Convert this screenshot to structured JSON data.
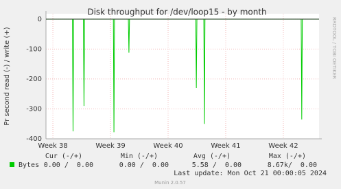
{
  "chart_data": {
    "type": "line",
    "title": "Disk throughput for /dev/loop15 - by month",
    "y_label": "Pr second read (-) / write (+)",
    "side_text": "RRDTOOL / TOBI OETIKER",
    "x": [
      37.88,
      38.34,
      38.35,
      38.36,
      38.53,
      38.54,
      38.55,
      39.05,
      39.06,
      39.07,
      39.31,
      39.32,
      39.33,
      40.48,
      40.49,
      40.5,
      40.62,
      40.63,
      40.64,
      42.31,
      42.32,
      42.33,
      42.62
    ],
    "series": [
      {
        "name": "Bytes",
        "color": "#00cc00",
        "values": [
          0,
          0,
          -375,
          0,
          0,
          -290,
          0,
          0,
          -378,
          0,
          0,
          -112,
          0,
          0,
          -230,
          0,
          0,
          -350,
          0,
          0,
          -335,
          0,
          0
        ]
      }
    ],
    "xlim": [
      37.88,
      42.62
    ],
    "xticks": [
      {
        "value": 38,
        "label": "Week 38"
      },
      {
        "value": 39,
        "label": "Week 39"
      },
      {
        "value": 40,
        "label": "Week 40"
      },
      {
        "value": 41,
        "label": "Week 41"
      },
      {
        "value": 42,
        "label": "Week 42"
      }
    ],
    "ylim": [
      -400,
      18
    ],
    "yticks": [
      0,
      -100,
      -200,
      -300,
      -400
    ],
    "grid": true,
    "summary": {
      "columns": [
        "Cur (-/+)",
        "Min (-/+)",
        "Avg (-/+)",
        "Max (-/+)"
      ],
      "cells": [
        "0.00 /  0.00",
        "0.00 /  0.00",
        "5.58 /  0.00",
        "8.67k/  0.00"
      ]
    },
    "last_update": "Last update: Mon Oct 21 00:00:05 2024",
    "footer": "Munin 2.0.57"
  }
}
